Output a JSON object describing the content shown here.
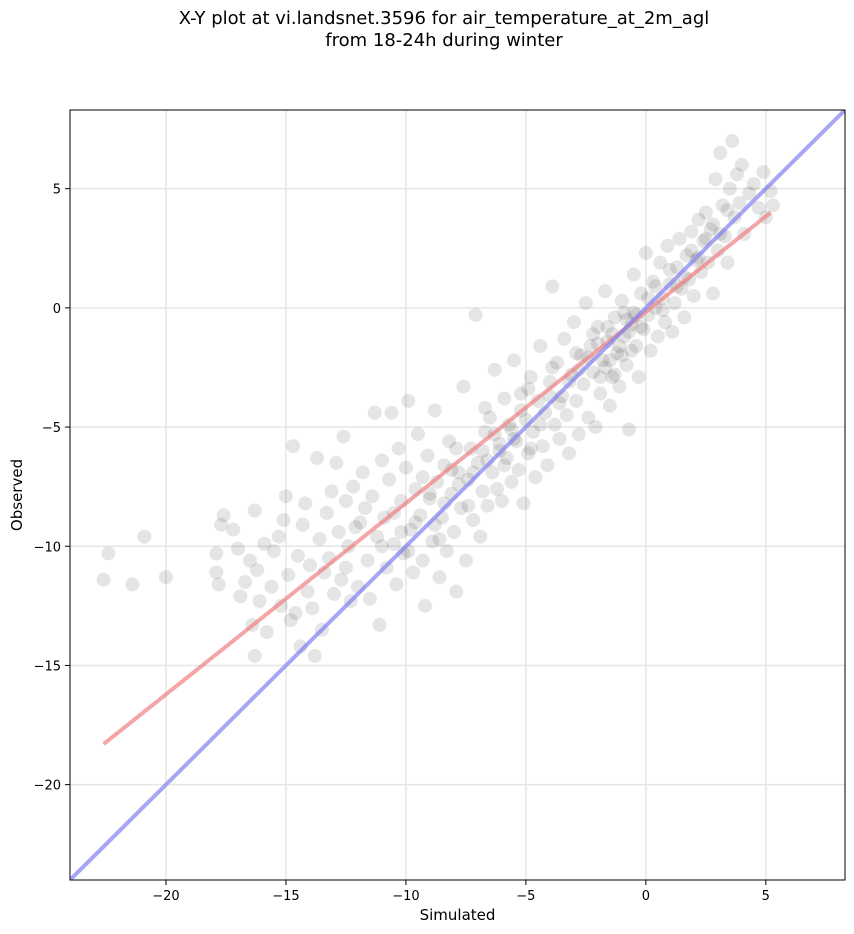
{
  "chart_data": {
    "type": "scatter",
    "title_line1": "X-Y plot at vi.landsnet.3596 for air_temperature_at_2m_agl",
    "title_line2": "from 18-24h during winter",
    "xlabel": "Simulated",
    "ylabel": "Observed",
    "xlim": [
      -24,
      8.3
    ],
    "ylim": [
      -24,
      8.3
    ],
    "xticks": [
      -20,
      -15,
      -10,
      -5,
      0,
      5
    ],
    "yticks": [
      -20,
      -15,
      -10,
      -5,
      0,
      5
    ],
    "tick_labels_x": [
      "−20",
      "−15",
      "−10",
      "−5",
      "0",
      "5"
    ],
    "tick_labels_y": [
      "−20",
      "−15",
      "−10",
      "−5",
      "0",
      "5"
    ],
    "grid": true,
    "marker_color": "#000000",
    "marker_alpha": 0.1,
    "lines": [
      {
        "role": "regression",
        "color": "#f08080",
        "x": [
          -22.6,
          5.2
        ],
        "y": [
          -18.3,
          4.0
        ]
      },
      {
        "role": "one-to-one",
        "color": "#8080f0",
        "x": [
          -24,
          8.3
        ],
        "y": [
          -24,
          8.3
        ]
      }
    ],
    "points": [
      [
        -22.6,
        -11.4
      ],
      [
        -22.4,
        -10.3
      ],
      [
        -21.4,
        -11.6
      ],
      [
        -20.9,
        -9.6
      ],
      [
        -20.0,
        -11.3
      ],
      [
        -17.9,
        -10.3
      ],
      [
        -17.9,
        -11.1
      ],
      [
        -17.8,
        -11.6
      ],
      [
        -17.7,
        -9.1
      ],
      [
        -17.6,
        -8.7
      ],
      [
        -17.2,
        -9.3
      ],
      [
        -17.0,
        -10.1
      ],
      [
        -16.9,
        -12.1
      ],
      [
        -16.7,
        -11.5
      ],
      [
        -16.5,
        -10.6
      ],
      [
        -16.4,
        -13.3
      ],
      [
        -16.3,
        -14.6
      ],
      [
        -16.3,
        -8.5
      ],
      [
        -16.2,
        -11.0
      ],
      [
        -16.1,
        -12.3
      ],
      [
        -15.9,
        -9.9
      ],
      [
        -15.8,
        -13.6
      ],
      [
        -15.6,
        -11.7
      ],
      [
        -15.5,
        -10.2
      ],
      [
        -15.3,
        -9.6
      ],
      [
        -15.2,
        -12.5
      ],
      [
        -15.1,
        -8.9
      ],
      [
        -15.0,
        -7.9
      ],
      [
        -14.9,
        -11.2
      ],
      [
        -14.8,
        -13.1
      ],
      [
        -14.7,
        -5.8
      ],
      [
        -14.6,
        -12.8
      ],
      [
        -14.5,
        -10.4
      ],
      [
        -14.4,
        -14.2
      ],
      [
        -14.3,
        -9.1
      ],
      [
        -14.2,
        -8.2
      ],
      [
        -14.1,
        -11.9
      ],
      [
        -14.0,
        -10.8
      ],
      [
        -13.9,
        -12.6
      ],
      [
        -13.8,
        -14.6
      ],
      [
        -13.7,
        -6.3
      ],
      [
        -13.6,
        -9.7
      ],
      [
        -13.5,
        -13.5
      ],
      [
        -13.4,
        -11.1
      ],
      [
        -13.3,
        -8.6
      ],
      [
        -13.2,
        -10.5
      ],
      [
        -13.1,
        -7.7
      ],
      [
        -13.0,
        -12.0
      ],
      [
        -12.9,
        -6.5
      ],
      [
        -12.8,
        -9.4
      ],
      [
        -12.7,
        -11.4
      ],
      [
        -12.6,
        -5.4
      ],
      [
        -12.5,
        -8.1
      ],
      [
        -12.4,
        -10.0
      ],
      [
        -12.3,
        -12.3
      ],
      [
        -12.2,
        -7.5
      ],
      [
        -12.1,
        -9.2
      ],
      [
        -12.0,
        -11.7
      ],
      [
        -11.8,
        -6.9
      ],
      [
        -11.7,
        -8.4
      ],
      [
        -11.6,
        -10.6
      ],
      [
        -11.5,
        -12.2
      ],
      [
        -11.4,
        -7.9
      ],
      [
        -11.3,
        -4.4
      ],
      [
        -11.2,
        -9.6
      ],
      [
        -11.1,
        -13.3
      ],
      [
        -11.0,
        -6.4
      ],
      [
        -10.9,
        -8.8
      ],
      [
        -10.8,
        -10.9
      ],
      [
        -10.7,
        -7.2
      ],
      [
        -10.6,
        -4.4
      ],
      [
        -10.5,
        -9.9
      ],
      [
        -10.4,
        -11.6
      ],
      [
        -10.3,
        -5.9
      ],
      [
        -10.2,
        -8.1
      ],
      [
        -10.1,
        -10.3
      ],
      [
        -10.0,
        -6.7
      ],
      [
        -9.9,
        -3.9
      ],
      [
        -9.8,
        -9.3
      ],
      [
        -9.7,
        -11.1
      ],
      [
        -9.6,
        -7.6
      ],
      [
        -9.5,
        -5.3
      ],
      [
        -9.4,
        -8.7
      ],
      [
        -9.3,
        -10.6
      ],
      [
        -9.2,
        -12.5
      ],
      [
        -9.1,
        -6.2
      ],
      [
        -9.0,
        -8.0
      ],
      [
        -8.9,
        -9.8
      ],
      [
        -8.8,
        -4.3
      ],
      [
        -8.7,
        -7.3
      ],
      [
        -8.6,
        -11.3
      ],
      [
        -8.5,
        -8.8
      ],
      [
        -8.4,
        -6.6
      ],
      [
        -8.3,
        -10.2
      ],
      [
        -8.2,
        -5.6
      ],
      [
        -8.1,
        -7.8
      ],
      [
        -8.0,
        -9.4
      ],
      [
        -7.9,
        -11.9
      ],
      [
        -7.8,
        -6.9
      ],
      [
        -7.7,
        -8.4
      ],
      [
        -7.6,
        -3.3
      ],
      [
        -7.5,
        -10.6
      ],
      [
        -7.4,
        -7.2
      ],
      [
        -7.3,
        -5.9
      ],
      [
        -7.2,
        -8.9
      ],
      [
        -7.1,
        -0.3
      ],
      [
        -7.0,
        -6.5
      ],
      [
        -6.9,
        -9.6
      ],
      [
        -6.8,
        -7.7
      ],
      [
        -6.7,
        -5.2
      ],
      [
        -6.6,
        -8.3
      ],
      [
        -6.5,
        -4.6
      ],
      [
        -6.4,
        -6.9
      ],
      [
        -6.3,
        -2.6
      ],
      [
        -6.2,
        -7.6
      ],
      [
        -6.1,
        -5.7
      ],
      [
        -6.0,
        -8.1
      ],
      [
        -5.9,
        -3.8
      ],
      [
        -5.8,
        -6.3
      ],
      [
        -5.7,
        -4.9
      ],
      [
        -5.6,
        -7.3
      ],
      [
        -5.5,
        -2.2
      ],
      [
        -5.4,
        -5.6
      ],
      [
        -5.3,
        -6.8
      ],
      [
        -5.2,
        -3.6
      ],
      [
        -5.1,
        -8.2
      ],
      [
        -5.0,
        -4.7
      ],
      [
        -4.9,
        -6.1
      ],
      [
        -4.8,
        -2.9
      ],
      [
        -4.7,
        -5.2
      ],
      [
        -4.6,
        -7.1
      ],
      [
        -4.5,
        -3.9
      ],
      [
        -4.4,
        -1.6
      ],
      [
        -4.3,
        -5.8
      ],
      [
        -4.2,
        -4.4
      ],
      [
        -4.1,
        -6.6
      ],
      [
        -4.0,
        -3.1
      ],
      [
        -3.9,
        0.9
      ],
      [
        -3.8,
        -4.9
      ],
      [
        -3.7,
        -2.3
      ],
      [
        -3.6,
        -5.5
      ],
      [
        -3.5,
        -3.7
      ],
      [
        -3.4,
        -1.3
      ],
      [
        -3.3,
        -4.5
      ],
      [
        -3.2,
        -6.1
      ],
      [
        -3.1,
        -2.8
      ],
      [
        -3.0,
        -0.6
      ],
      [
        -2.9,
        -3.9
      ],
      [
        -2.8,
        -5.3
      ],
      [
        -2.7,
        -2.0
      ],
      [
        -2.6,
        -3.2
      ],
      [
        -2.5,
        0.2
      ],
      [
        -2.4,
        -4.6
      ],
      [
        -2.3,
        -1.6
      ],
      [
        -2.2,
        -2.7
      ],
      [
        -2.1,
        -5.0
      ],
      [
        -2.0,
        -0.8
      ],
      [
        -1.9,
        -3.6
      ],
      [
        -1.8,
        -2.2
      ],
      [
        -1.7,
        0.7
      ],
      [
        -1.6,
        -1.4
      ],
      [
        -1.5,
        -4.1
      ],
      [
        -1.4,
        -2.9
      ],
      [
        -1.3,
        -0.4
      ],
      [
        -1.2,
        -1.9
      ],
      [
        -1.1,
        -3.3
      ],
      [
        -1.0,
        0.3
      ],
      [
        -0.9,
        -1.2
      ],
      [
        -0.8,
        -2.4
      ],
      [
        -0.7,
        -5.1
      ],
      [
        -0.6,
        -0.7
      ],
      [
        -0.5,
        1.4
      ],
      [
        -0.4,
        -1.6
      ],
      [
        -0.3,
        -2.9
      ],
      [
        -0.2,
        0.6
      ],
      [
        -0.1,
        -0.9
      ],
      [
        0.0,
        2.3
      ],
      [
        0.1,
        -0.3
      ],
      [
        0.2,
        -1.8
      ],
      [
        0.3,
        1.1
      ],
      [
        0.4,
        0.0
      ],
      [
        0.5,
        -1.2
      ],
      [
        0.6,
        1.9
      ],
      [
        0.7,
        0.4
      ],
      [
        0.8,
        -0.6
      ],
      [
        0.9,
        2.6
      ],
      [
        1.0,
        1.0
      ],
      [
        1.1,
        -1.0
      ],
      [
        1.2,
        0.2
      ],
      [
        1.3,
        1.7
      ],
      [
        1.4,
        2.9
      ],
      [
        1.5,
        0.8
      ],
      [
        1.6,
        -0.4
      ],
      [
        1.7,
        2.2
      ],
      [
        1.8,
        1.2
      ],
      [
        1.9,
        3.2
      ],
      [
        2.0,
        0.5
      ],
      [
        2.1,
        2.0
      ],
      [
        2.2,
        3.7
      ],
      [
        2.3,
        1.5
      ],
      [
        2.4,
        2.8
      ],
      [
        2.5,
        4.0
      ],
      [
        2.6,
        1.9
      ],
      [
        2.7,
        3.3
      ],
      [
        2.8,
        0.6
      ],
      [
        2.9,
        5.4
      ],
      [
        3.0,
        2.4
      ],
      [
        3.1,
        6.5
      ],
      [
        3.2,
        4.3
      ],
      [
        3.3,
        3.0
      ],
      [
        3.4,
        1.9
      ],
      [
        3.5,
        5.0
      ],
      [
        3.6,
        7.0
      ],
      [
        3.7,
        3.8
      ],
      [
        3.8,
        5.6
      ],
      [
        3.9,
        4.4
      ],
      [
        4.0,
        6.0
      ],
      [
        4.1,
        3.1
      ],
      [
        4.3,
        4.8
      ],
      [
        4.5,
        5.2
      ],
      [
        4.7,
        4.2
      ],
      [
        4.9,
        5.7
      ],
      [
        5.0,
        3.8
      ],
      [
        5.2,
        4.9
      ],
      [
        5.3,
        4.3
      ],
      [
        -11.9,
        -9.0
      ],
      [
        -9.3,
        -7.1
      ],
      [
        -8.1,
        -6.8
      ],
      [
        -7.4,
        -8.3
      ],
      [
        -6.8,
        -6.0
      ],
      [
        -6.3,
        -5.3
      ],
      [
        -5.9,
        -6.6
      ],
      [
        -5.5,
        -5.5
      ],
      [
        -5.2,
        -4.3
      ],
      [
        -4.8,
        -5.9
      ],
      [
        -4.4,
        -4.9
      ],
      [
        -4.0,
        -3.7
      ],
      [
        -3.6,
        -4.0
      ],
      [
        -3.2,
        -3.1
      ],
      [
        -2.8,
        -2.6
      ],
      [
        -2.4,
        -2.1
      ],
      [
        -2.0,
        -1.5
      ],
      [
        -1.7,
        -2.5
      ],
      [
        -1.4,
        -1.1
      ],
      [
        -1.1,
        -1.6
      ],
      [
        -0.8,
        -0.5
      ],
      [
        -0.5,
        -0.2
      ],
      [
        -0.2,
        -0.8
      ],
      [
        0.1,
        0.4
      ],
      [
        0.4,
        0.9
      ],
      [
        0.7,
        -0.1
      ],
      [
        1.0,
        1.6
      ],
      [
        1.3,
        0.9
      ],
      [
        1.6,
        1.3
      ],
      [
        1.9,
        2.4
      ],
      [
        2.2,
        2.1
      ],
      [
        2.5,
        2.9
      ],
      [
        2.8,
        3.5
      ],
      [
        3.1,
        3.1
      ],
      [
        3.4,
        4.1
      ],
      [
        -1.3,
        -2.8
      ],
      [
        -1.0,
        -2.0
      ],
      [
        -0.7,
        -1.0
      ],
      [
        -0.4,
        -0.3
      ],
      [
        -1.6,
        -0.8
      ],
      [
        -1.9,
        -2.9
      ],
      [
        -2.2,
        -1.1
      ],
      [
        -0.9,
        -0.2
      ],
      [
        -0.6,
        -1.8
      ],
      [
        -1.5,
        -2.2
      ],
      [
        -7.8,
        -7.4
      ],
      [
        -7.2,
        -6.9
      ],
      [
        -6.6,
        -6.4
      ],
      [
        -6.1,
        -6.0
      ],
      [
        -5.6,
        -5.1
      ],
      [
        -8.4,
        -8.2
      ],
      [
        -9.0,
        -7.8
      ],
      [
        -9.6,
        -9.0
      ],
      [
        -10.2,
        -9.4
      ],
      [
        -8.8,
        -9.1
      ],
      [
        -4.9,
        -3.4
      ],
      [
        -3.9,
        -2.5
      ],
      [
        -2.9,
        -1.9
      ],
      [
        -6.7,
        -4.2
      ],
      [
        -7.9,
        -5.9
      ],
      [
        -12.5,
        -10.9
      ],
      [
        -11.0,
        -10.0
      ],
      [
        -10.5,
        -8.6
      ],
      [
        -9.9,
        -10.2
      ],
      [
        -8.6,
        -9.7
      ]
    ]
  }
}
